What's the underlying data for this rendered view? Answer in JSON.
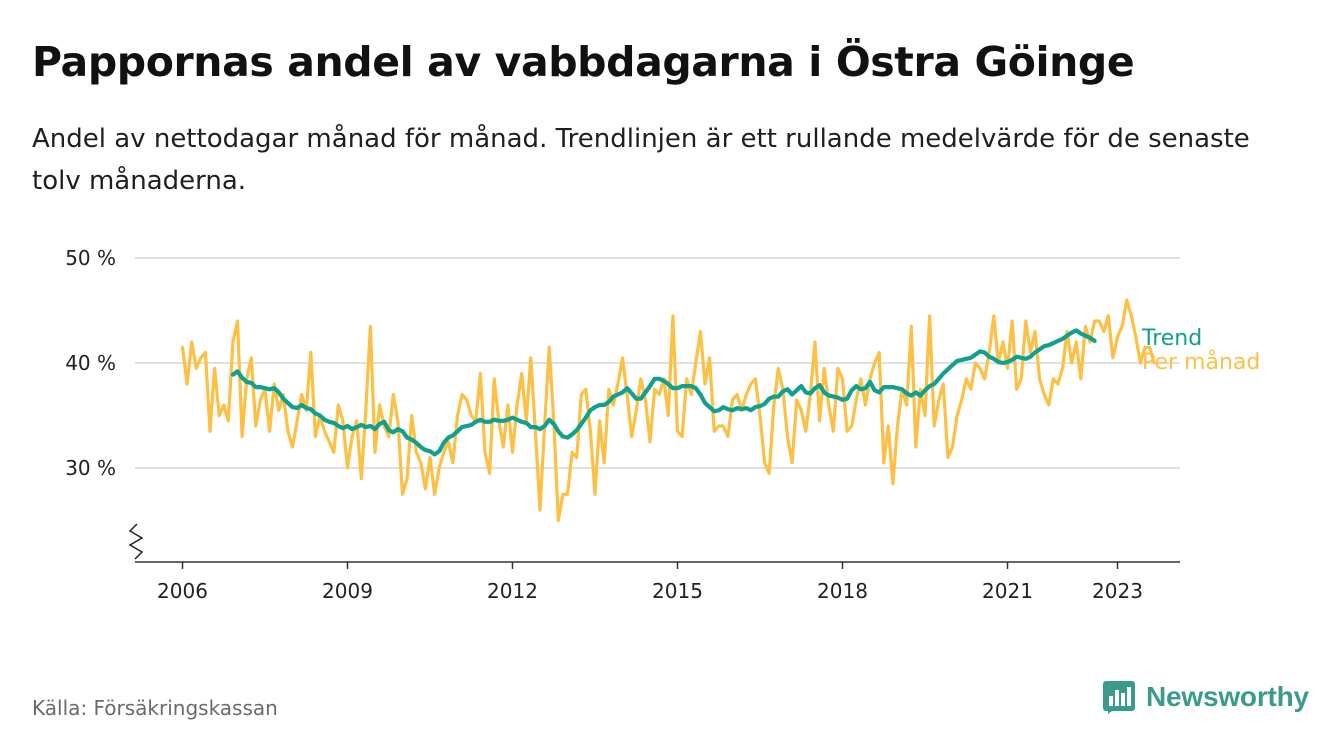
{
  "header": {
    "title": "Pappornas andel av vabbdagarna i Östra Göinge",
    "subtitle": "Andel av nettodagar månad för månad. Trendlinjen är ett rullande medelvärde för de senaste tolv månaderna."
  },
  "footer": {
    "source": "Källa: Försäkringskassan",
    "brand": "Newsworthy",
    "brand_icon": "newsworthy-logo-icon"
  },
  "colors": {
    "monthly": "#FDC045",
    "trend": "#12A08E",
    "grid": "#d6d6d6",
    "axis": "#333333",
    "brand": "#3a9b8d"
  },
  "chart_data": {
    "type": "line",
    "title": "Pappornas andel av vabbdagarna i Östra Göinge",
    "subtitle": "Andel av nettodagar månad för månad. Trendlinjen är ett rullande medelvärde för de senaste tolv månaderna.",
    "xlabel": "",
    "ylabel": "",
    "ylim": [
      22,
      50
    ],
    "y_ticks": [
      30,
      40,
      50
    ],
    "y_tick_labels": [
      "30 %",
      "40 %",
      "50 %"
    ],
    "y_axis_break": true,
    "x_ticks": [
      2006,
      2009,
      2012,
      2015,
      2018,
      2021,
      2023
    ],
    "x_tick_labels": [
      "2006",
      "2009",
      "2012",
      "2015",
      "2018",
      "2021",
      "2023"
    ],
    "grid": true,
    "legend": "direct labels at line ends",
    "start": "2006-01",
    "frequency": "monthly",
    "series": [
      {
        "name": "Per månad",
        "start": "2006-01",
        "values": [
          41.5,
          38.0,
          42.0,
          39.5,
          40.5,
          41.0,
          33.5,
          39.5,
          35.0,
          36.0,
          34.5,
          42.0,
          44.0,
          33.0,
          38.5,
          40.5,
          34.0,
          36.5,
          37.5,
          33.5,
          38.0,
          35.5,
          37.0,
          33.5,
          32.0,
          34.5,
          37.0,
          35.5,
          41.0,
          33.0,
          35.0,
          33.5,
          32.5,
          31.5,
          36.0,
          34.5,
          30.0,
          33.0,
          34.5,
          29.0,
          35.5,
          43.5,
          31.5,
          36.0,
          34.0,
          33.0,
          37.0,
          34.5,
          27.5,
          29.0,
          35.0,
          31.5,
          30.5,
          28.0,
          31.0,
          27.5,
          30.0,
          31.5,
          32.5,
          30.5,
          35.0,
          37.0,
          36.5,
          35.0,
          34.5,
          39.0,
          31.5,
          29.5,
          38.5,
          34.5,
          32.0,
          36.0,
          31.5,
          36.0,
          39.0,
          34.5,
          40.5,
          33.5,
          26.0,
          34.0,
          41.5,
          34.5,
          25.0,
          27.5,
          27.5,
          31.5,
          31.0,
          37.0,
          37.5,
          33.5,
          27.5,
          34.5,
          30.5,
          37.5,
          36.0,
          38.0,
          40.5,
          37.0,
          33.0,
          35.5,
          38.5,
          36.5,
          32.5,
          37.5,
          37.0,
          38.5,
          35.0,
          44.5,
          33.5,
          33.0,
          38.5,
          37.0,
          40.0,
          43.0,
          38.0,
          40.5,
          33.5,
          34.0,
          34.0,
          33.0,
          36.5,
          37.0,
          35.5,
          37.0,
          38.0,
          38.5,
          35.0,
          30.5,
          29.5,
          36.0,
          39.5,
          37.5,
          33.0,
          30.5,
          36.5,
          35.5,
          33.5,
          37.0,
          42.0,
          34.5,
          39.5,
          36.0,
          33.5,
          39.5,
          38.5,
          33.5,
          34.0,
          36.5,
          38.5,
          36.0,
          38.5,
          40.0,
          41.0,
          30.5,
          34.0,
          28.5,
          34.0,
          37.5,
          36.0,
          43.5,
          32.0,
          37.5,
          35.0,
          44.5,
          34.0,
          36.5,
          38.0,
          31.0,
          32.0,
          35.0,
          36.5,
          38.5,
          37.5,
          40.0,
          39.5,
          38.5,
          41.0,
          44.5,
          40.0,
          42.0,
          39.5,
          44.0,
          37.5,
          38.5,
          44.0,
          41.0,
          43.0,
          38.5,
          37.0,
          36.0,
          38.5,
          38.0,
          39.5,
          43.0,
          40.0,
          42.0,
          38.5,
          43.5,
          42.0,
          44.0,
          44.0,
          43.0,
          44.5,
          40.5,
          42.5,
          43.5,
          46.0,
          44.5,
          42.5,
          40.0,
          41.5,
          41.5,
          40.0
        ]
      },
      {
        "name": "Trend",
        "start": "2006-12",
        "values": [
          38.9,
          39.2,
          38.6,
          38.2,
          38.1,
          37.7,
          37.7,
          37.6,
          37.5,
          37.6,
          37.2,
          36.6,
          36.2,
          35.8,
          35.7,
          36.0,
          35.7,
          35.6,
          35.2,
          35.0,
          34.6,
          34.4,
          34.3,
          34.0,
          33.8,
          34.0,
          33.7,
          33.9,
          34.1,
          33.9,
          34.0,
          33.7,
          34.2,
          34.4,
          33.6,
          33.4,
          33.7,
          33.5,
          32.9,
          32.7,
          32.4,
          32.0,
          31.7,
          31.6,
          31.3,
          31.6,
          32.4,
          32.9,
          33.1,
          33.5,
          33.9,
          34.0,
          34.1,
          34.4,
          34.6,
          34.4,
          34.4,
          34.6,
          34.5,
          34.5,
          34.6,
          34.8,
          34.6,
          34.4,
          34.3,
          33.9,
          33.9,
          33.7,
          34.0,
          34.6,
          34.2,
          33.5,
          33.0,
          32.9,
          33.2,
          33.6,
          34.2,
          34.8,
          35.5,
          35.8,
          36.0,
          36.0,
          36.3,
          36.8,
          37.0,
          37.2,
          37.6,
          37.1,
          36.6,
          36.6,
          37.2,
          37.8,
          38.5,
          38.5,
          38.3,
          38.0,
          37.6,
          37.6,
          37.8,
          37.8,
          37.8,
          37.6,
          37.0,
          36.2,
          35.8,
          35.4,
          35.5,
          35.8,
          35.6,
          35.5,
          35.7,
          35.6,
          35.7,
          35.5,
          35.8,
          35.9,
          36.1,
          36.6,
          36.8,
          36.8,
          37.3,
          37.5,
          37.0,
          37.4,
          37.8,
          37.2,
          37.1,
          37.6,
          37.9,
          37.2,
          36.9,
          36.8,
          36.7,
          36.5,
          36.6,
          37.4,
          37.8,
          37.5,
          37.6,
          38.2,
          37.4,
          37.2,
          37.7,
          37.7,
          37.7,
          37.6,
          37.5,
          37.1,
          36.9,
          37.2,
          36.9,
          37.4,
          37.8,
          38.0,
          38.5,
          39.0,
          39.4,
          39.8,
          40.2,
          40.3,
          40.4,
          40.5,
          40.8,
          41.1,
          41.0,
          40.6,
          40.4,
          40.1,
          40.0,
          40.1,
          40.3,
          40.6,
          40.5,
          40.4,
          40.6,
          41.0,
          41.3,
          41.6,
          41.7,
          41.9,
          42.1,
          42.3,
          42.6,
          42.9,
          43.1,
          42.8,
          42.6,
          42.4,
          42.1
        ]
      }
    ],
    "end_labels": {
      "trend": "Trend",
      "monthly": "Per månad"
    }
  }
}
